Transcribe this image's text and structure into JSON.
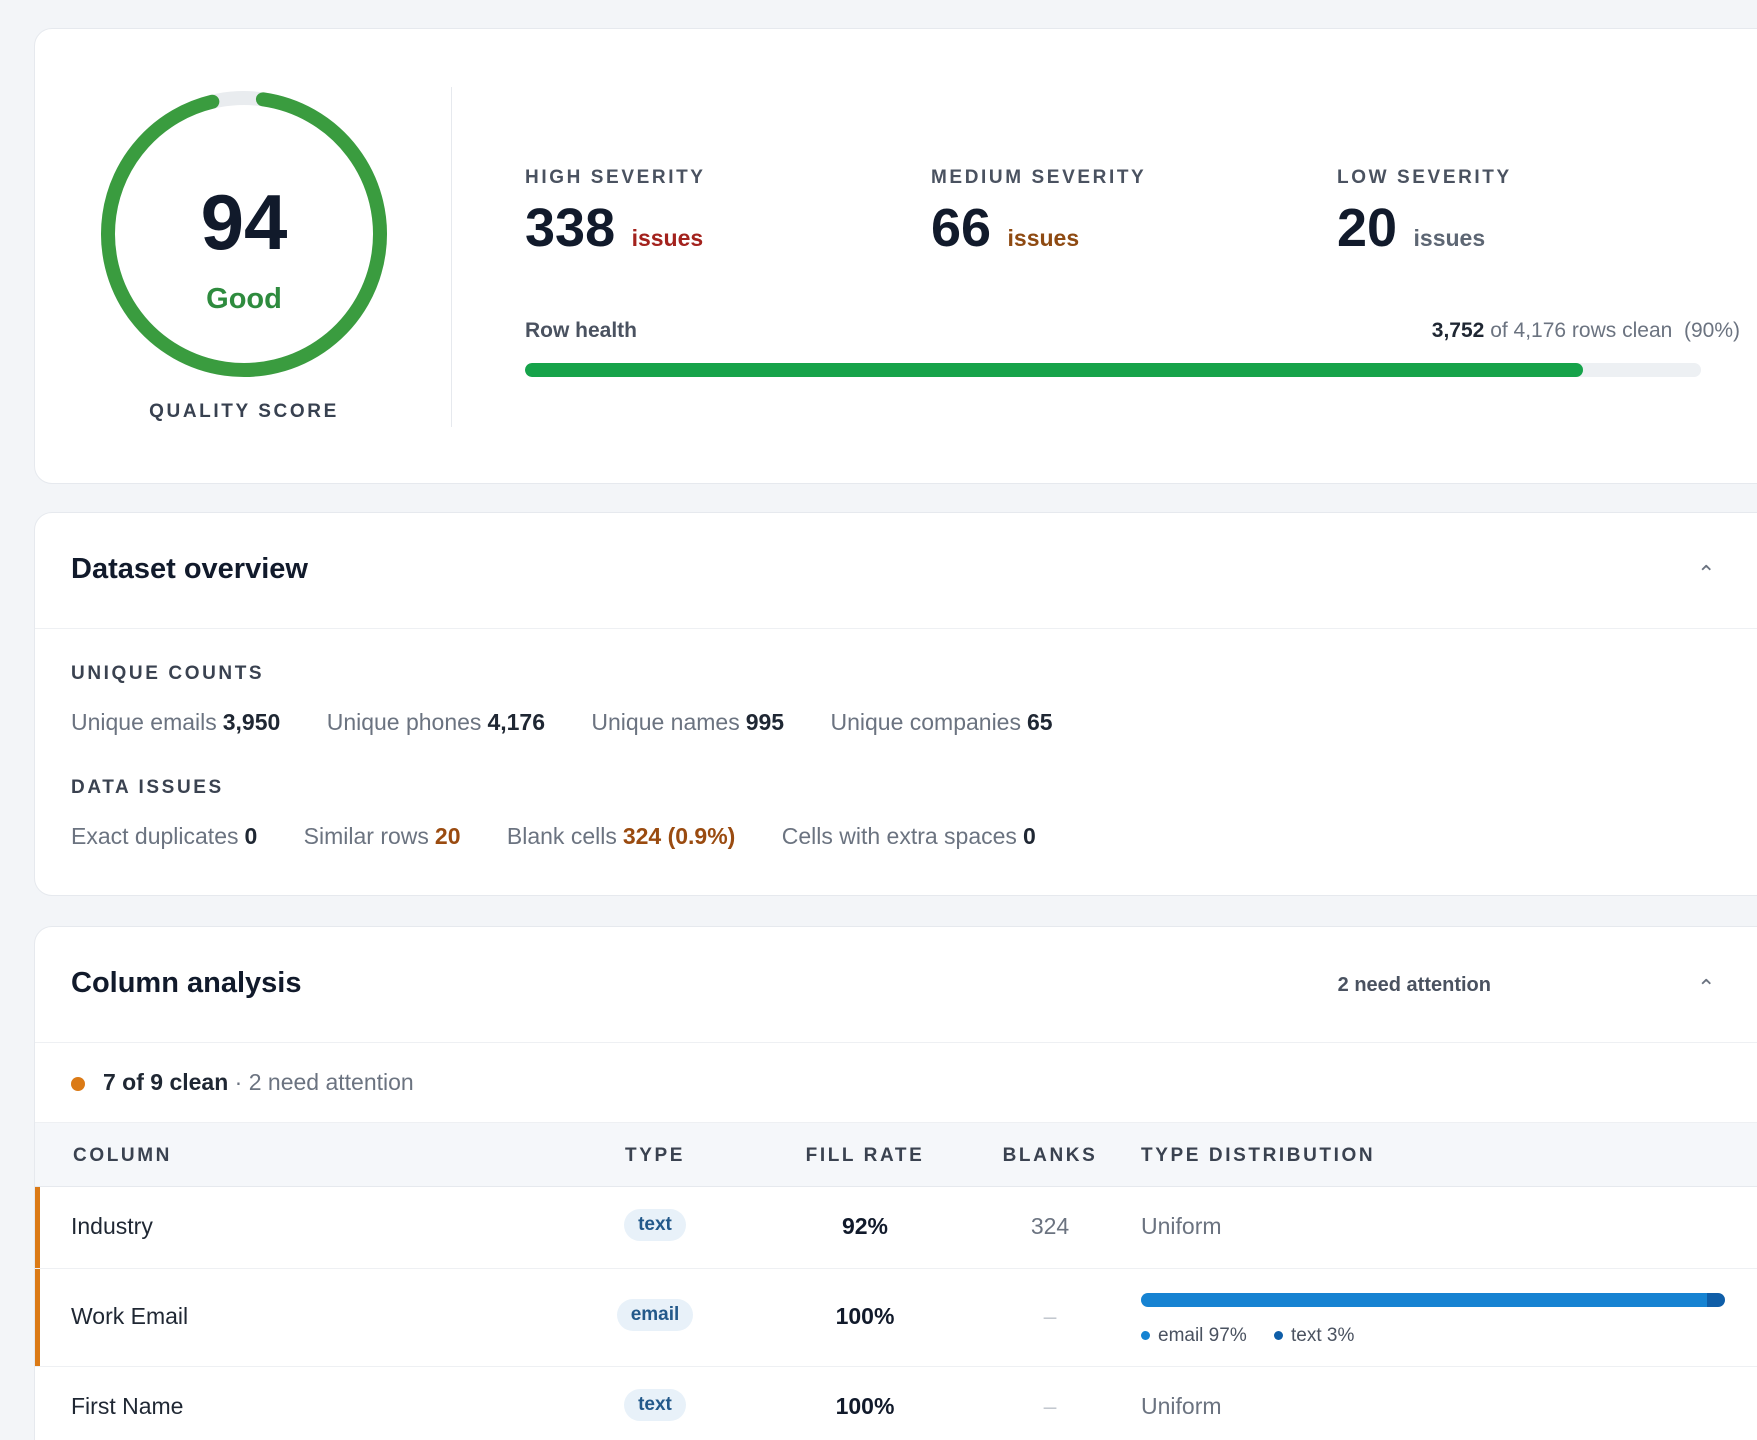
{
  "quality": {
    "score": "94",
    "score_value": 94,
    "rating": "Good",
    "label": "QUALITY SCORE",
    "color": "#3a9c3f"
  },
  "severity": [
    {
      "label": "HIGH SEVERITY",
      "count": "338",
      "unit": "issues",
      "color": "#a3221d"
    },
    {
      "label": "MEDIUM SEVERITY",
      "count": "66",
      "unit": "issues",
      "color": "#8e4a12"
    },
    {
      "label": "LOW SEVERITY",
      "count": "20",
      "unit": "issues",
      "color": "#5d6673"
    }
  ],
  "row_health": {
    "label": "Row health",
    "clean": "3,752",
    "of_text": "of 4,176 rows clean",
    "percent_text": "(90%)",
    "fraction": 0.9
  },
  "overview": {
    "title": "Dataset overview",
    "collapse_icon": "chevron-up-icon",
    "unique_label": "UNIQUE COUNTS",
    "unique": [
      {
        "label": "Unique emails",
        "value": "3,950"
      },
      {
        "label": "Unique phones",
        "value": "4,176"
      },
      {
        "label": "Unique names",
        "value": "995"
      },
      {
        "label": "Unique companies",
        "value": "65"
      }
    ],
    "issues_label": "DATA ISSUES",
    "issues": [
      {
        "label": "Exact duplicates",
        "value": "0"
      },
      {
        "label": "Similar rows",
        "value": "20"
      },
      {
        "label": "Blank cells",
        "value": "324 (0.9%)"
      },
      {
        "label": "Cells with extra spaces",
        "value": "0"
      }
    ]
  },
  "columns": {
    "title": "Column analysis",
    "attention_badge": "2 need attention",
    "summary_clean": "7 of 9 clean",
    "summary_rest": " · 2 need attention",
    "headers": {
      "column": "COLUMN",
      "type": "TYPE",
      "fill_rate": "FILL RATE",
      "blanks": "BLANKS",
      "distribution": "TYPE DISTRIBUTION"
    },
    "rows": [
      {
        "name": "Industry",
        "type": "text",
        "fill": "92%",
        "blanks": "324",
        "distribution": "Uniform"
      },
      {
        "name": "Work Email",
        "type": "email",
        "fill": "100%",
        "blanks": "–",
        "dist_email": "email 97%",
        "dist_text": "text 3%",
        "email_share": 0.97
      },
      {
        "name": "First Name",
        "type": "text",
        "fill": "100%",
        "blanks": "–",
        "distribution": "Uniform"
      }
    ]
  }
}
